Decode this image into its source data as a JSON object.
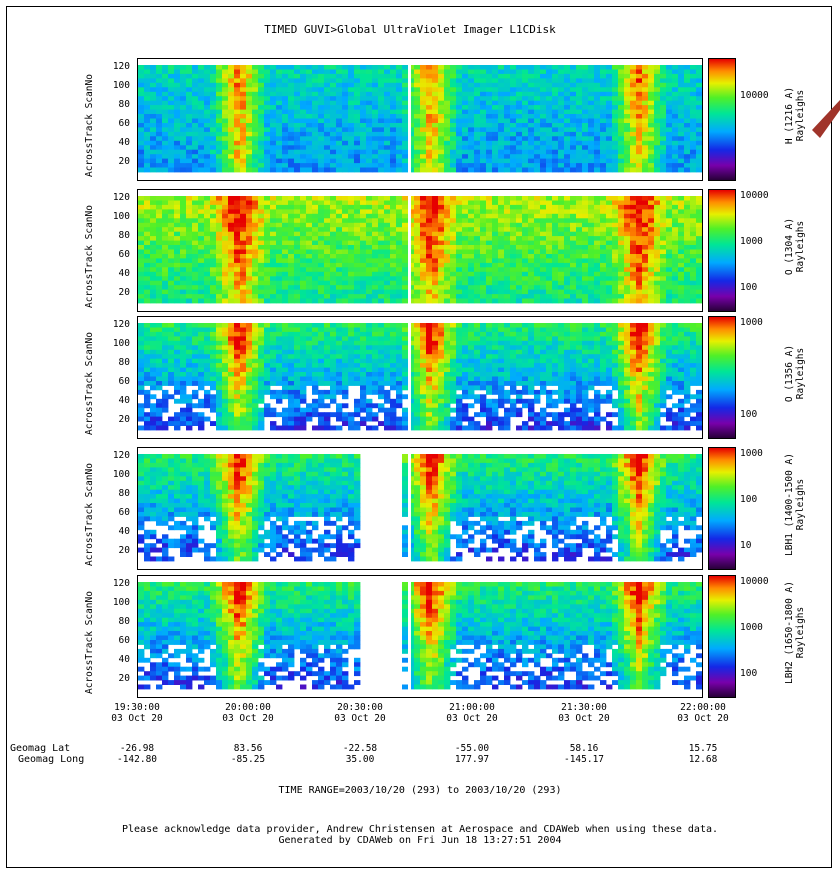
{
  "title": "TIMED   GUVI>Global UltraViolet Imager   L1CDisk",
  "panels": [
    {
      "ylabel": "AcrossTrack ScanNo",
      "cbar_label1": "H (1216 A)",
      "cbar_label2": "Rayleighs",
      "cbar_ticks": [
        "10000"
      ]
    },
    {
      "ylabel": "AcrossTrack ScanNo",
      "cbar_label1": "O (1304 A)",
      "cbar_label2": "Rayleighs",
      "cbar_ticks": [
        "10000",
        "1000",
        "100"
      ]
    },
    {
      "ylabel": "AcrossTrack ScanNo",
      "cbar_label1": "O (1356 A)",
      "cbar_label2": "Rayleighs",
      "cbar_ticks": [
        "1000",
        "100"
      ]
    },
    {
      "ylabel": "AcrossTrack ScanNo",
      "cbar_label1": "LBH1 (1400-1500 A)",
      "cbar_label2": "Rayleighs",
      "cbar_ticks": [
        "1000",
        "100",
        "10"
      ]
    },
    {
      "ylabel": "AcrossTrack ScanNo",
      "cbar_label1": "LBH2 (1650-1800 A)",
      "cbar_label2": "Rayleighs",
      "cbar_ticks": [
        "10000",
        "1000",
        "100"
      ]
    }
  ],
  "y_ticks": [
    "120",
    "100",
    "80",
    "60",
    "40",
    "20"
  ],
  "x_ticks": [
    {
      "time": "19:30:00",
      "date": "03 Oct 20",
      "lat": "-26.98",
      "long": "-142.80"
    },
    {
      "time": "20:00:00",
      "date": "03 Oct 20",
      "lat": "83.56",
      "long": "-85.25"
    },
    {
      "time": "20:30:00",
      "date": "03 Oct 20",
      "lat": "-22.58",
      "long": "35.00"
    },
    {
      "time": "21:00:00",
      "date": "03 Oct 20",
      "lat": "-55.00",
      "long": "177.97"
    },
    {
      "time": "21:30:00",
      "date": "03 Oct 20",
      "lat": "58.16",
      "long": "-145.17"
    },
    {
      "time": "22:00:00",
      "date": "03 Oct 20",
      "lat": "15.75",
      "long": "12.68"
    }
  ],
  "row_labels": {
    "lat": "Geomag Lat",
    "long": "Geomag Long"
  },
  "time_range": "TIME RANGE=2003/10/20 (293) to 2003/10/20 (293)",
  "footer1": "Please acknowledge data provider, Andrew Christensen at Aerospace and CDAWeb when using these data.",
  "footer2": "Generated by CDAWeb on Fri Jun 18 13:27:51 2004",
  "chart_data": {
    "type": "heatmap",
    "title": "TIMED   GUVI>Global UltraViolet Imager   L1CDisk",
    "xlabel": "",
    "x_tick_labels": [
      "19:30:00",
      "20:00:00",
      "20:30:00",
      "21:00:00",
      "21:30:00",
      "22:00:00"
    ],
    "ylabel": "AcrossTrack ScanNo",
    "ylim": [
      0,
      130
    ],
    "y_ticks": [
      20,
      40,
      60,
      80,
      100,
      120
    ],
    "colorscale": "rainbow (purple-blue-cyan-green-yellow-red)",
    "series": [
      {
        "name": "H (1216 A)",
        "colorbar_ticks": [
          10000
        ]
      },
      {
        "name": "O (1304 A)",
        "colorbar_ticks": [
          100,
          1000,
          10000
        ]
      },
      {
        "name": "O (1356 A)",
        "colorbar_ticks": [
          100,
          1000
        ]
      },
      {
        "name": "LBH1 (1400-1500 A)",
        "colorbar_ticks": [
          10,
          100,
          1000
        ]
      },
      {
        "name": "LBH2 (1650-1800 A)",
        "colorbar_ticks": [
          100,
          1000,
          10000
        ]
      }
    ]
  }
}
